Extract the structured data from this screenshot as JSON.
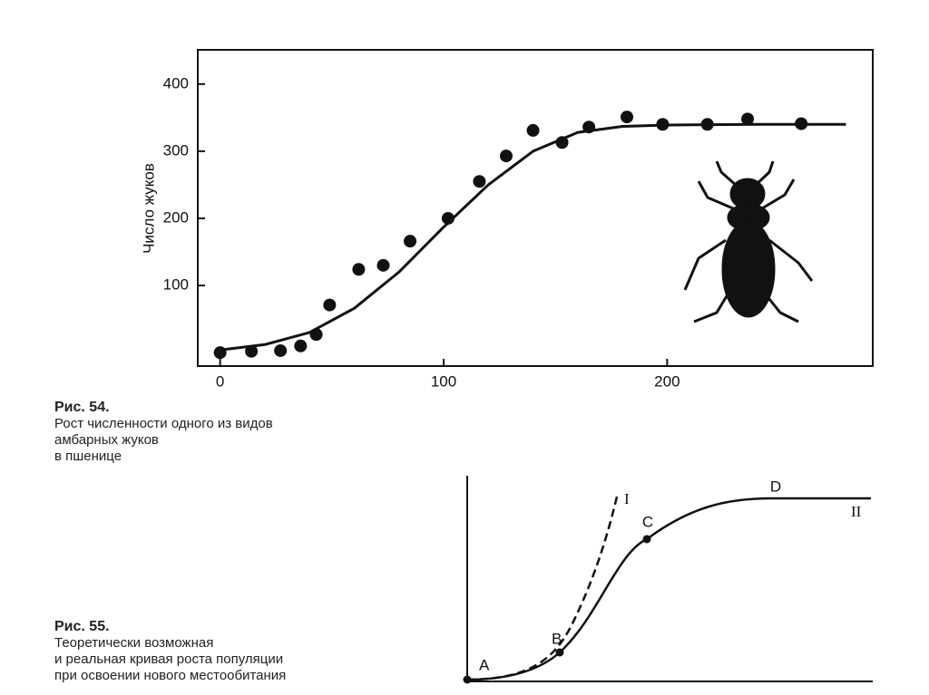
{
  "chart_data": {
    "type": "scatter",
    "y_label": "Число жуков",
    "xlim": [
      -10,
      292
    ],
    "ylim": [
      -20,
      451
    ],
    "xticks": [
      0,
      100,
      200
    ],
    "yticks": [
      100,
      200,
      300,
      400
    ],
    "color": "#111",
    "series": [
      {
        "type": "scatter",
        "x": [
          0,
          14,
          27,
          36,
          43,
          49,
          62,
          73,
          85,
          102,
          116,
          128,
          140,
          153,
          165,
          182,
          198,
          218,
          236,
          260
        ],
        "values": [
          0,
          2,
          3,
          10,
          27,
          71,
          124,
          130,
          166,
          200,
          255,
          293,
          331,
          313,
          336,
          351,
          340,
          340,
          348,
          341
        ]
      },
      {
        "type": "line",
        "x": [
          0,
          20,
          40,
          60,
          80,
          100,
          120,
          140,
          160,
          180,
          200,
          240,
          280
        ],
        "values": [
          4,
          12,
          30,
          66,
          120,
          187,
          250,
          300,
          328,
          337,
          339,
          340,
          340
        ]
      }
    ]
  },
  "figure_54": {
    "label": "Рис. 54.",
    "caption": [
      "Рост численности одного из видов",
      "амбарных жуков",
      "в пшенице"
    ]
  },
  "figure_55": {
    "label": "Рис. 55.",
    "caption": [
      "Теоретически возможная",
      "и реальная кривая роста популяции",
      "при освоении нового местообитания"
    ],
    "point_labels": [
      "A",
      "B",
      "C",
      "D"
    ],
    "curve_labels": [
      "I",
      "II"
    ]
  }
}
